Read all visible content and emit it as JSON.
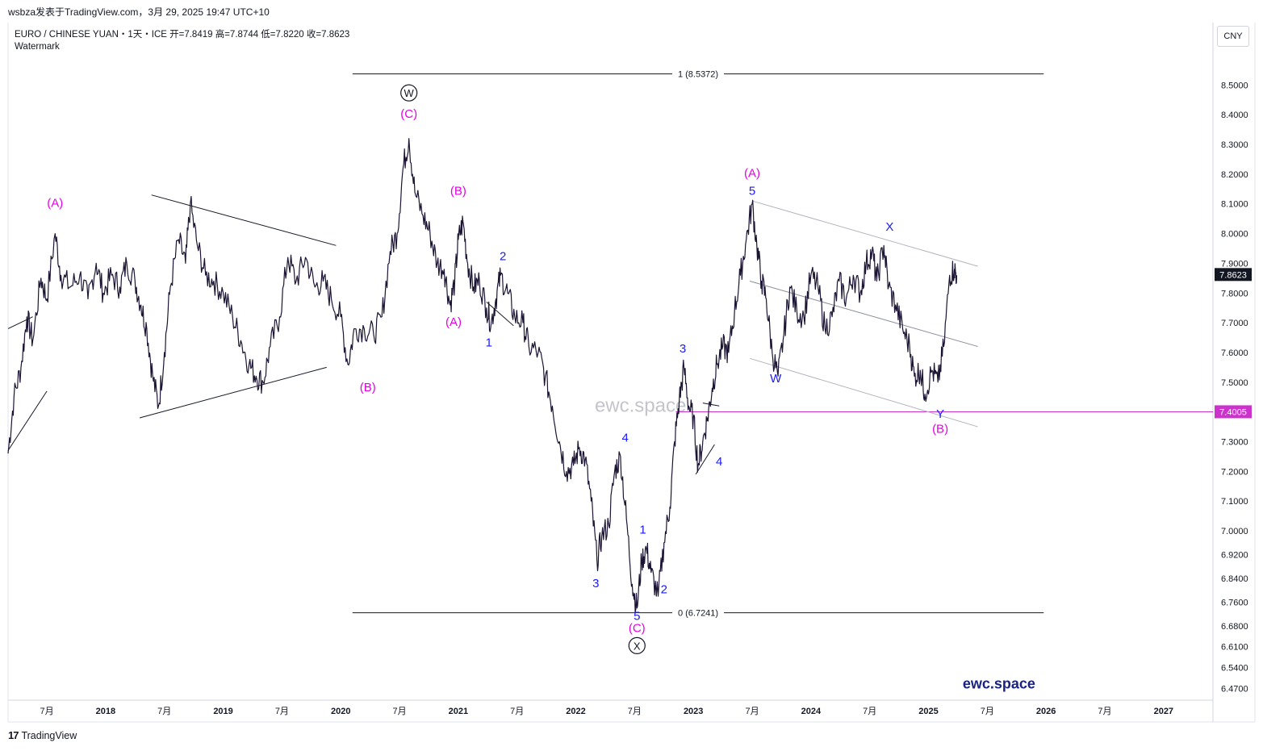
{
  "header": {
    "publisher_line": "wsbza发表于TradingView.com，3月 29, 2025 19:47 UTC+10",
    "symbol_line": "EURO / CHINESE YUAN・1天・ICE  开=7.8419  高=7.8744  低=7.8220  收=7.8623",
    "watermark_label": "Watermark",
    "currency_button": "CNY"
  },
  "footer": {
    "logo_mark": "17",
    "logo_text": "TradingView"
  },
  "colors": {
    "price": "#1c1433",
    "magenta": "#e600e6",
    "blue": "#1a1aff",
    "level": "#cc33cc",
    "grid": "#e0e3eb"
  },
  "chart_data": {
    "type": "line",
    "title": "EURO / CHINESE YUAN・1天・ICE",
    "ylim": [
      6.43,
      8.71
    ],
    "y_ticks": [
      "8.5000",
      "8.4000",
      "8.3000",
      "8.2000",
      "8.1000",
      "8.0000",
      "7.9000",
      "7.8000",
      "7.7000",
      "7.6000",
      "7.5000",
      "7.4000",
      "7.3000",
      "7.2000",
      "7.1000",
      "7.0000",
      "6.9200",
      "6.8400",
      "6.7600",
      "6.6800",
      "6.6100",
      "6.5400",
      "6.4700"
    ],
    "x_ticks": [
      "7月",
      "2018",
      "7月",
      "2019",
      "7月",
      "2020",
      "7月",
      "2021",
      "7月",
      "2022",
      "7月",
      "2023",
      "7月",
      "2024",
      "7月",
      "2025",
      "7月",
      "2026",
      "7月",
      "2027"
    ],
    "x_tick_dates": [
      2017.5,
      2018.0,
      2018.5,
      2019.0,
      2019.5,
      2020.0,
      2020.5,
      2021.0,
      2021.5,
      2022.0,
      2022.5,
      2023.0,
      2023.5,
      2024.0,
      2024.5,
      2025.0,
      2025.5,
      2026.0,
      2026.5,
      2027.0
    ],
    "xlim": [
      2017.17,
      2027.42
    ],
    "series": [
      {
        "values_xy": [
          [
            2017.17,
            7.26
          ],
          [
            2017.22,
            7.45
          ],
          [
            2017.28,
            7.55
          ],
          [
            2017.33,
            7.72
          ],
          [
            2017.38,
            7.64
          ],
          [
            2017.45,
            7.85
          ],
          [
            2017.5,
            7.78
          ],
          [
            2017.57,
            8.0
          ],
          [
            2017.62,
            7.86
          ],
          [
            2017.7,
            7.82
          ],
          [
            2017.78,
            7.86
          ],
          [
            2017.85,
            7.78
          ],
          [
            2017.92,
            7.9
          ],
          [
            2017.98,
            7.8
          ],
          [
            2018.05,
            7.86
          ],
          [
            2018.12,
            7.82
          ],
          [
            2018.18,
            7.9
          ],
          [
            2018.25,
            7.84
          ],
          [
            2018.3,
            7.76
          ],
          [
            2018.35,
            7.68
          ],
          [
            2018.4,
            7.52
          ],
          [
            2018.45,
            7.42
          ],
          [
            2018.5,
            7.6
          ],
          [
            2018.55,
            7.82
          ],
          [
            2018.62,
            7.98
          ],
          [
            2018.68,
            7.9
          ],
          [
            2018.72,
            8.1
          ],
          [
            2018.78,
            7.96
          ],
          [
            2018.85,
            7.86
          ],
          [
            2018.92,
            7.84
          ],
          [
            2019.0,
            7.8
          ],
          [
            2019.08,
            7.72
          ],
          [
            2019.15,
            7.64
          ],
          [
            2019.22,
            7.56
          ],
          [
            2019.28,
            7.52
          ],
          [
            2019.34,
            7.5
          ],
          [
            2019.4,
            7.62
          ],
          [
            2019.48,
            7.72
          ],
          [
            2019.55,
            7.92
          ],
          [
            2019.62,
            7.84
          ],
          [
            2019.7,
            7.92
          ],
          [
            2019.78,
            7.82
          ],
          [
            2019.85,
            7.84
          ],
          [
            2019.92,
            7.78
          ],
          [
            2020.0,
            7.72
          ],
          [
            2020.06,
            7.56
          ],
          [
            2020.12,
            7.68
          ],
          [
            2020.2,
            7.68
          ],
          [
            2020.28,
            7.66
          ],
          [
            2020.35,
            7.72
          ],
          [
            2020.42,
            7.94
          ],
          [
            2020.48,
            8.0
          ],
          [
            2020.53,
            8.22
          ],
          [
            2020.58,
            8.32
          ],
          [
            2020.63,
            8.14
          ],
          [
            2020.7,
            8.06
          ],
          [
            2020.76,
            8.0
          ],
          [
            2020.82,
            7.9
          ],
          [
            2020.88,
            7.88
          ],
          [
            2020.93,
            7.76
          ],
          [
            2020.97,
            7.84
          ],
          [
            2021.0,
            7.98
          ],
          [
            2021.04,
            8.04
          ],
          [
            2021.08,
            7.9
          ],
          [
            2021.13,
            7.82
          ],
          [
            2021.18,
            7.84
          ],
          [
            2021.24,
            7.75
          ],
          [
            2021.28,
            7.7
          ],
          [
            2021.32,
            7.78
          ],
          [
            2021.36,
            7.86
          ],
          [
            2021.42,
            7.8
          ],
          [
            2021.48,
            7.72
          ],
          [
            2021.55,
            7.7
          ],
          [
            2021.6,
            7.62
          ],
          [
            2021.68,
            7.6
          ],
          [
            2021.74,
            7.52
          ],
          [
            2021.8,
            7.42
          ],
          [
            2021.86,
            7.3
          ],
          [
            2021.92,
            7.2
          ],
          [
            2021.98,
            7.22
          ],
          [
            2022.03,
            7.28
          ],
          [
            2022.08,
            7.24
          ],
          [
            2022.13,
            7.1
          ],
          [
            2022.18,
            6.9
          ],
          [
            2022.22,
            6.98
          ],
          [
            2022.28,
            7.02
          ],
          [
            2022.33,
            7.2
          ],
          [
            2022.38,
            7.25
          ],
          [
            2022.43,
            7.04
          ],
          [
            2022.48,
            6.82
          ],
          [
            2022.52,
            6.74
          ],
          [
            2022.56,
            6.9
          ],
          [
            2022.6,
            6.94
          ],
          [
            2022.64,
            6.86
          ],
          [
            2022.7,
            6.78
          ],
          [
            2022.75,
            6.96
          ],
          [
            2022.8,
            7.08
          ],
          [
            2022.84,
            7.3
          ],
          [
            2022.88,
            7.44
          ],
          [
            2022.92,
            7.55
          ],
          [
            2022.96,
            7.42
          ],
          [
            2023.0,
            7.38
          ],
          [
            2023.04,
            7.22
          ],
          [
            2023.08,
            7.3
          ],
          [
            2023.12,
            7.38
          ],
          [
            2023.16,
            7.48
          ],
          [
            2023.2,
            7.56
          ],
          [
            2023.25,
            7.62
          ],
          [
            2023.3,
            7.6
          ],
          [
            2023.35,
            7.74
          ],
          [
            2023.4,
            7.86
          ],
          [
            2023.45,
            7.98
          ],
          [
            2023.5,
            8.1
          ],
          [
            2023.54,
            7.96
          ],
          [
            2023.58,
            7.84
          ],
          [
            2023.62,
            7.78
          ],
          [
            2023.67,
            7.6
          ],
          [
            2023.72,
            7.52
          ],
          [
            2023.77,
            7.66
          ],
          [
            2023.82,
            7.82
          ],
          [
            2023.88,
            7.74
          ],
          [
            2023.94,
            7.72
          ],
          [
            2024.0,
            7.86
          ],
          [
            2024.06,
            7.82
          ],
          [
            2024.12,
            7.68
          ],
          [
            2024.18,
            7.72
          ],
          [
            2024.24,
            7.84
          ],
          [
            2024.3,
            7.78
          ],
          [
            2024.36,
            7.86
          ],
          [
            2024.42,
            7.8
          ],
          [
            2024.47,
            7.9
          ],
          [
            2024.52,
            7.94
          ],
          [
            2024.56,
            7.84
          ],
          [
            2024.62,
            7.96
          ],
          [
            2024.66,
            7.82
          ],
          [
            2024.72,
            7.76
          ],
          [
            2024.78,
            7.68
          ],
          [
            2024.84,
            7.62
          ],
          [
            2024.88,
            7.52
          ],
          [
            2024.93,
            7.54
          ],
          [
            2024.97,
            7.46
          ],
          [
            2025.03,
            7.54
          ],
          [
            2025.08,
            7.5
          ],
          [
            2025.13,
            7.62
          ],
          [
            2025.18,
            7.86
          ],
          [
            2025.22,
            7.88
          ],
          [
            2025.24,
            7.86
          ]
        ]
      }
    ],
    "fib_levels": [
      {
        "label": "1 (8.5372)",
        "value": 8.5372,
        "x0": 2020.1,
        "x1": 2025.98
      },
      {
        "label": "0 (6.7241)",
        "value": 6.7241,
        "x0": 2020.1,
        "x1": 2025.98
      }
    ],
    "horizontal_level": {
      "value": 7.4005,
      "label": "7.4005",
      "x0": 2022.85
    },
    "last_price": {
      "value": 7.8623,
      "label": "7.8623"
    },
    "trendlines": [
      {
        "from": [
          2017.17,
          7.68
        ],
        "to": [
          2017.38,
          7.72
        ],
        "color": "#131722"
      },
      {
        "from": [
          2017.17,
          7.27
        ],
        "to": [
          2017.5,
          7.47
        ],
        "color": "#131722"
      },
      {
        "from": [
          2018.39,
          8.13
        ],
        "to": [
          2019.96,
          7.96
        ],
        "color": "#131722"
      },
      {
        "from": [
          2018.29,
          7.38
        ],
        "to": [
          2019.88,
          7.55
        ],
        "color": "#131722"
      },
      {
        "from": [
          2021.24,
          7.77
        ],
        "to": [
          2021.47,
          7.69
        ],
        "color": "#131722"
      },
      {
        "from": [
          2023.02,
          7.19
        ],
        "to": [
          2023.18,
          7.29
        ],
        "color": "#131722"
      },
      {
        "from": [
          2023.08,
          7.43
        ],
        "to": [
          2023.22,
          7.42
        ],
        "color": "#131722"
      },
      {
        "from": [
          2023.5,
          8.11
        ],
        "to": [
          2025.42,
          7.89
        ],
        "color": "#b2b5be"
      },
      {
        "from": [
          2023.48,
          7.84
        ],
        "to": [
          2025.42,
          7.62
        ],
        "color": "#8a8e99"
      },
      {
        "from": [
          2023.48,
          7.58
        ],
        "to": [
          2025.42,
          7.35
        ],
        "color": "#b2b5be"
      }
    ],
    "annotations": [
      {
        "text": "(A)",
        "x": 2017.57,
        "y": 8.09,
        "color": "magenta"
      },
      {
        "text": "(B)",
        "x": 2020.23,
        "y": 7.47,
        "color": "magenta"
      },
      {
        "text": "W",
        "x": 2020.58,
        "y": 8.46,
        "color": "black",
        "circled": true
      },
      {
        "text": "(C)",
        "x": 2020.58,
        "y": 8.39,
        "color": "magenta"
      },
      {
        "text": "(B)",
        "x": 2021.0,
        "y": 8.13,
        "color": "magenta"
      },
      {
        "text": "(A)",
        "x": 2020.96,
        "y": 7.69,
        "color": "magenta"
      },
      {
        "text": "1",
        "x": 2021.26,
        "y": 7.62,
        "color": "blue"
      },
      {
        "text": "2",
        "x": 2021.38,
        "y": 7.91,
        "color": "blue"
      },
      {
        "text": "3",
        "x": 2022.17,
        "y": 6.81,
        "color": "blue"
      },
      {
        "text": "4",
        "x": 2022.42,
        "y": 7.3,
        "color": "blue"
      },
      {
        "text": "1",
        "x": 2022.57,
        "y": 6.99,
        "color": "blue"
      },
      {
        "text": "2",
        "x": 2022.75,
        "y": 6.79,
        "color": "blue"
      },
      {
        "text": "5",
        "x": 2022.52,
        "y": 6.7,
        "color": "blue"
      },
      {
        "text": "(C)",
        "x": 2022.52,
        "y": 6.66,
        "color": "magenta"
      },
      {
        "text": "X",
        "x": 2022.52,
        "y": 6.6,
        "color": "black",
        "circled": true
      },
      {
        "text": "3",
        "x": 2022.91,
        "y": 7.6,
        "color": "blue"
      },
      {
        "text": "4",
        "x": 2023.22,
        "y": 7.22,
        "color": "blue"
      },
      {
        "text": "(A)",
        "x": 2023.5,
        "y": 8.19,
        "color": "magenta"
      },
      {
        "text": "5",
        "x": 2023.5,
        "y": 8.13,
        "color": "blue"
      },
      {
        "text": "W",
        "x": 2023.7,
        "y": 7.5,
        "color": "blue"
      },
      {
        "text": "X",
        "x": 2024.67,
        "y": 8.01,
        "color": "blue"
      },
      {
        "text": "Y",
        "x": 2025.1,
        "y": 7.38,
        "color": "blue"
      },
      {
        "text": "(B)",
        "x": 2025.1,
        "y": 7.33,
        "color": "magenta"
      }
    ],
    "watermarks": [
      {
        "text": "ewc.space",
        "x": 2022.55,
        "y": 7.4,
        "style": "faint"
      },
      {
        "text": "ewc.space",
        "x": 2025.6,
        "y": 6.47,
        "style": "brand"
      }
    ],
    "grid": false
  }
}
